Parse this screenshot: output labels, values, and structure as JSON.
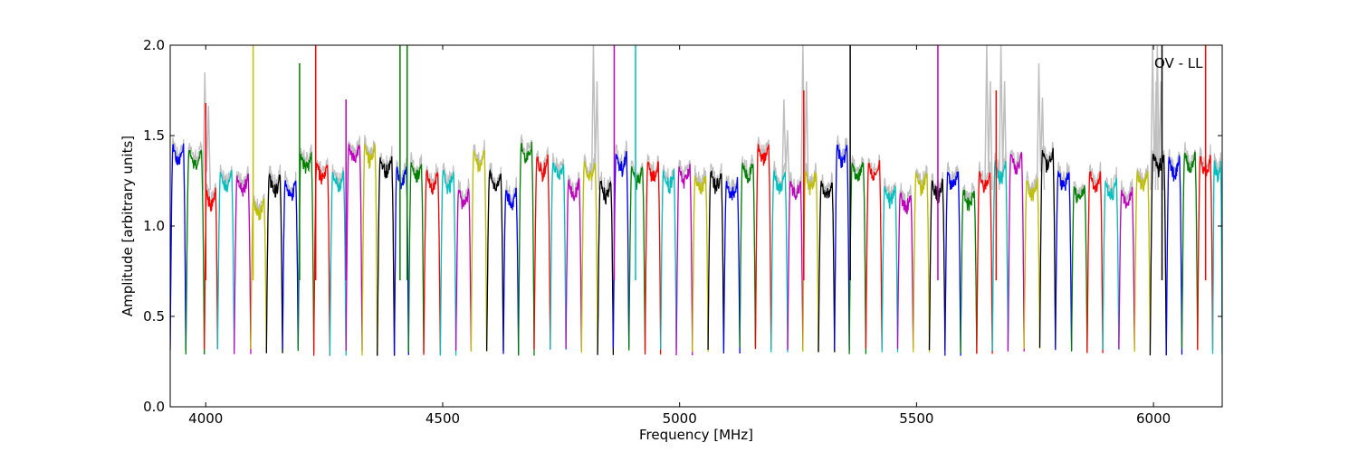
{
  "chart_data": {
    "type": "line",
    "title": "",
    "annotation": "OV - LL",
    "xlabel": "Frequency [MHz]",
    "ylabel": "Amplitude [arbitrary units]",
    "xlim": [
      3925,
      6145
    ],
    "ylim": [
      0.0,
      2.0
    ],
    "xticks": [
      4000,
      4500,
      5000,
      5500,
      6000
    ],
    "yticks": [
      0.0,
      0.5,
      1.0,
      1.5,
      2.0
    ],
    "xtick_labels": [
      "4000",
      "4500",
      "5000",
      "5500",
      "6000"
    ],
    "ytick_labels": [
      "0.0",
      "0.5",
      "1.0",
      "1.5",
      "2.0"
    ],
    "grid": false,
    "legend": "none",
    "background_series_color": "#bfbfbf",
    "colors": [
      "#0000ff",
      "#008000",
      "#ff0000",
      "#00bfbf",
      "#bf00bf",
      "#bfbf00",
      "#000000"
    ],
    "band_starts": [
      3925,
      3958,
      3997,
      4025,
      4060,
      4095,
      4128,
      4162,
      4195,
      4228,
      4262,
      4296,
      4330,
      4362,
      4398,
      4428,
      4460,
      4495,
      4528,
      4560,
      4593,
      4628,
      4660,
      4693,
      4727,
      4760,
      4793,
      4827,
      4860,
      4893,
      4927,
      4960,
      4993,
      5027,
      5060,
      5093,
      5127,
      5160,
      5193,
      5228,
      5260,
      5293,
      5327,
      5358,
      5393,
      5427,
      5460,
      5493,
      5527,
      5560,
      5593,
      5627,
      5660,
      5693,
      5727,
      5760,
      5793,
      5827,
      5860,
      5893,
      5927,
      5960,
      5993,
      6027,
      6060,
      6093,
      6125
    ],
    "band_peaks": [
      1.45,
      1.42,
      1.2,
      1.3,
      1.28,
      1.15,
      1.28,
      1.25,
      1.4,
      1.35,
      1.3,
      1.45,
      1.45,
      1.38,
      1.32,
      1.35,
      1.3,
      1.3,
      1.2,
      1.42,
      1.3,
      1.2,
      1.45,
      1.38,
      1.35,
      1.25,
      1.35,
      1.25,
      1.4,
      1.33,
      1.35,
      1.3,
      1.33,
      1.28,
      1.3,
      1.25,
      1.35,
      1.45,
      1.3,
      1.25,
      1.3,
      1.25,
      1.45,
      1.35,
      1.35,
      1.22,
      1.18,
      1.3,
      1.25,
      1.3,
      1.2,
      1.3,
      1.35,
      1.4,
      1.25,
      1.42,
      1.3,
      1.22,
      1.3,
      1.25,
      1.2,
      1.3,
      1.4,
      1.38,
      1.4,
      1.38,
      1.35
    ],
    "band_floor": 0.28,
    "spikes": [
      {
        "x": 4000,
        "y": 1.68,
        "color": "#ff0000"
      },
      {
        "x": 4100,
        "y": 2.0,
        "color": "#bfbf00"
      },
      {
        "x": 4198,
        "y": 1.9,
        "color": "#008000"
      },
      {
        "x": 4232,
        "y": 2.0,
        "color": "#ff0000"
      },
      {
        "x": 4296,
        "y": 1.7,
        "color": "#bf00bf"
      },
      {
        "x": 4410,
        "y": 2.0,
        "color": "#008000"
      },
      {
        "x": 4425,
        "y": 2.0,
        "color": "#008000"
      },
      {
        "x": 4862,
        "y": 2.0,
        "color": "#bf00bf"
      },
      {
        "x": 4907,
        "y": 2.0,
        "color": "#00bfbf"
      },
      {
        "x": 5262,
        "y": 1.75,
        "color": "#ff0000"
      },
      {
        "x": 5360,
        "y": 2.0,
        "color": "#000000"
      },
      {
        "x": 5545,
        "y": 2.0,
        "color": "#bf00bf"
      },
      {
        "x": 5668,
        "y": 1.75,
        "color": "#ff0000"
      },
      {
        "x": 6018,
        "y": 2.0,
        "color": "#000000"
      },
      {
        "x": 6110,
        "y": 2.0,
        "color": "#ff0000"
      }
    ],
    "grey_spikes": [
      {
        "x": 4000,
        "y": 1.85
      },
      {
        "x": 4820,
        "y": 2.0
      },
      {
        "x": 5222,
        "y": 1.7
      },
      {
        "x": 5262,
        "y": 2.0
      },
      {
        "x": 5650,
        "y": 2.0
      },
      {
        "x": 5680,
        "y": 2.0
      },
      {
        "x": 5760,
        "y": 1.9
      },
      {
        "x": 6000,
        "y": 2.0
      },
      {
        "x": 6010,
        "y": 2.0
      }
    ]
  }
}
